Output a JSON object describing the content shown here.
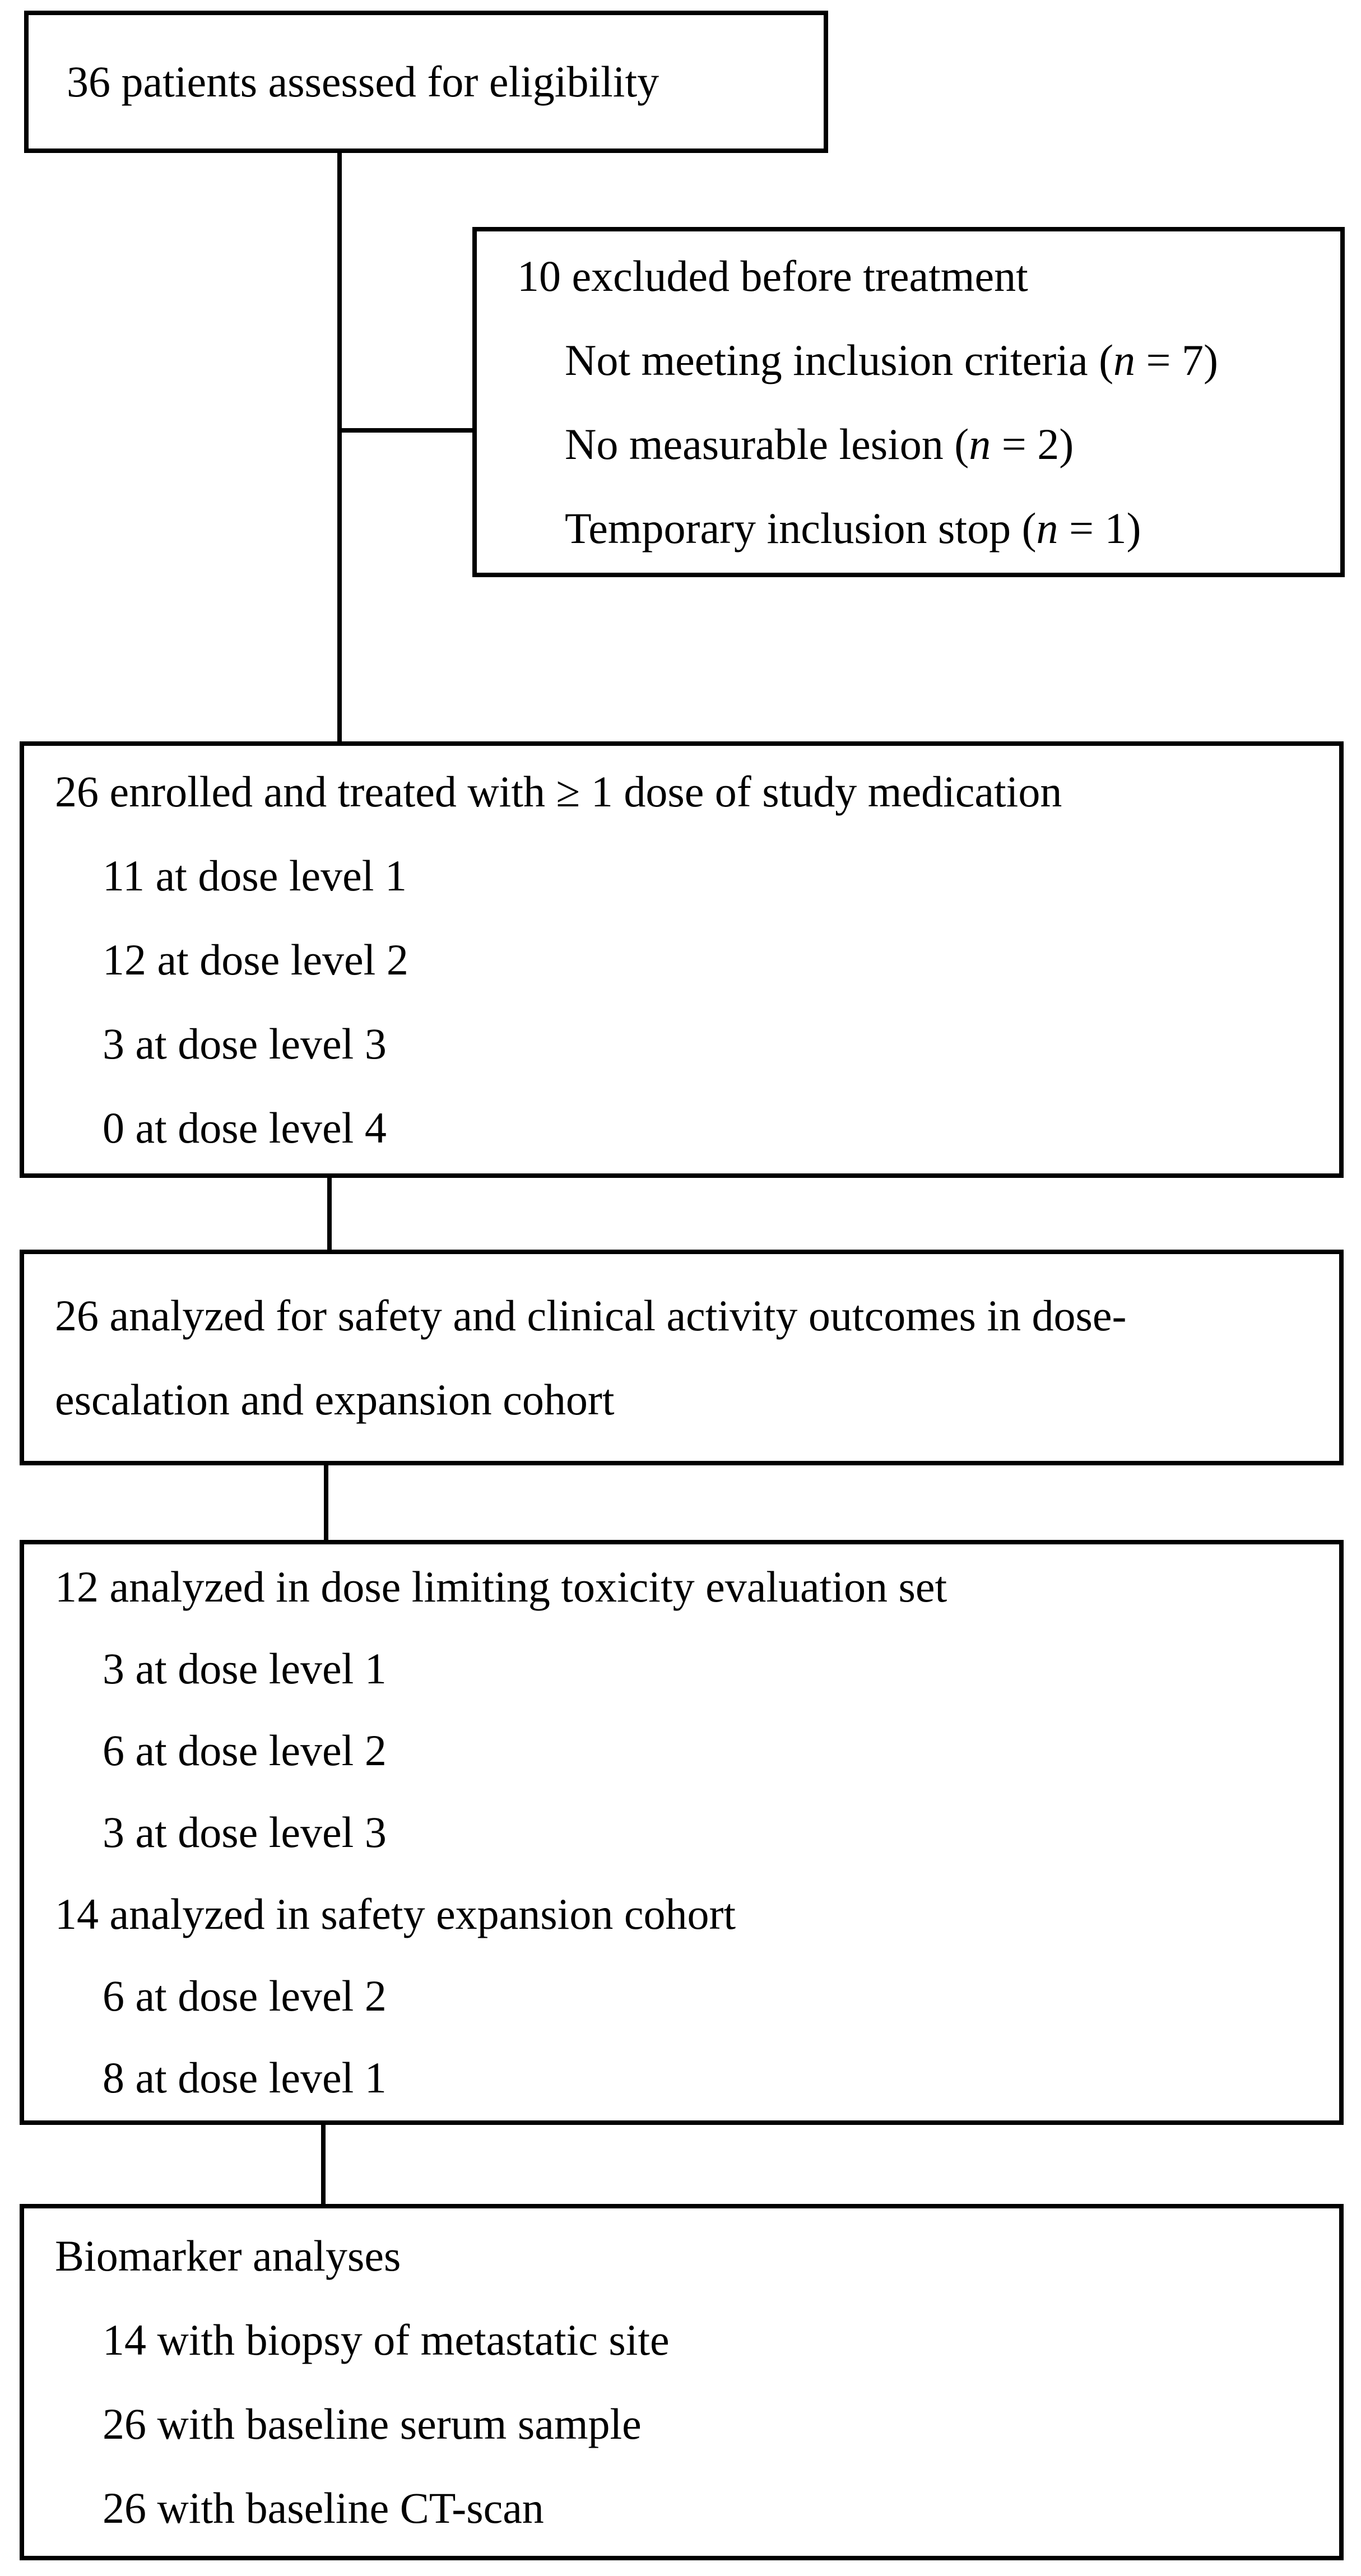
{
  "diagram": {
    "type": "consort-flowchart",
    "background_color": "#ffffff",
    "line_color": "#000000",
    "boxes": [
      {
        "id": "box-eligibility",
        "lines": [
          {
            "text": "36 patients assessed for eligibility",
            "indent": false
          }
        ]
      },
      {
        "id": "box-excluded",
        "lines": [
          {
            "text": "10 excluded before treatment",
            "indent": false
          },
          {
            "text": "Not meeting inclusion criteria (n = 7)",
            "indent": true
          },
          {
            "text": "No measurable lesion (n = 2)",
            "indent": true
          },
          {
            "text": "Temporary inclusion stop (n = 1)",
            "indent": true
          }
        ]
      },
      {
        "id": "box-enrolled",
        "lines": [
          {
            "text": "26 enrolled and treated with ≥ 1 dose of study medication",
            "indent": false
          },
          {
            "text": "11 at dose level 1",
            "indent": true
          },
          {
            "text": "12 at dose level 2",
            "indent": true
          },
          {
            "text": "3 at dose level 3",
            "indent": true
          },
          {
            "text": "0 at dose level 4",
            "indent": true
          }
        ]
      },
      {
        "id": "box-analyzed-safety",
        "lines": [
          {
            "text": "26 analyzed for safety and clinical activity outcomes in dose-",
            "indent": false
          },
          {
            "text": "escalation and expansion cohort",
            "indent": false
          }
        ]
      },
      {
        "id": "box-dlt",
        "lines": [
          {
            "text": "12 analyzed in dose limiting toxicity evaluation set",
            "indent": false
          },
          {
            "text": "3 at dose level 1",
            "indent": true
          },
          {
            "text": "6 at dose level 2",
            "indent": true
          },
          {
            "text": "3 at dose level 3",
            "indent": true
          },
          {
            "text": "14 analyzed in safety expansion cohort",
            "indent": false
          },
          {
            "text": "6 at dose level 2",
            "indent": true
          },
          {
            "text": "8 at dose level 1",
            "indent": true
          }
        ]
      },
      {
        "id": "box-biomarker",
        "lines": [
          {
            "text": "Biomarker analyses",
            "indent": false
          },
          {
            "text": "14 with biopsy of metastatic site",
            "indent": true
          },
          {
            "text": "26 with baseline serum sample",
            "indent": true
          },
          {
            "text": "26 with baseline CT-scan",
            "indent": true
          }
        ]
      }
    ]
  }
}
